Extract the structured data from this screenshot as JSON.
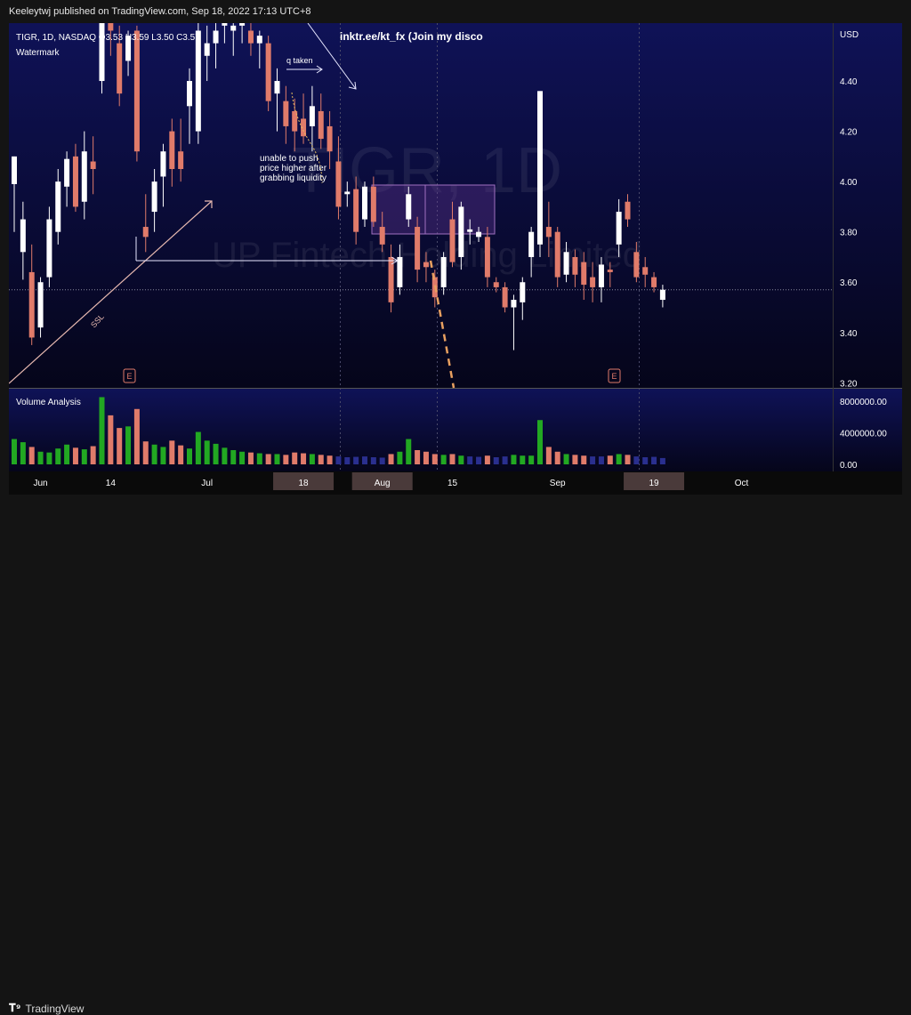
{
  "header": {
    "publisher": "Keeleytwj published on TradingView.com, Sep 18, 2022 17:13 UTC+8"
  },
  "legend": {
    "symbol_line": "TIGR, 1D, NASDAQ  O3.53  H3.59  L3.50  C3.57",
    "indicator": "Watermark"
  },
  "overlay": {
    "link_text": "inktr.ee/kt_fx (Join my disco",
    "watermark_symbol": "TIGR, 1D",
    "watermark_name": "UP Fintech Holding Limited",
    "annotation_liquidity_taken": "q taken",
    "annotation_unable": [
      "unable to push",
      "price higher after",
      "grabbing liquidity"
    ],
    "trendline_label": "SSL",
    "earnings_marker": "E"
  },
  "volume_pane": {
    "title": "Volume Analysis"
  },
  "footer": {
    "brand": "TradingView"
  },
  "colors": {
    "up": "#ffffff",
    "down": "#e07b6a",
    "vol_up": "#22a822",
    "vol_down": "#e07b6a",
    "vol_low": "#2a2f8f",
    "bg_top": "#0f1257",
    "bg_bottom": "#05051a",
    "dashed_orange": "#e8a060"
  },
  "chart_data": {
    "type": "candlestick",
    "price_axis": {
      "unit": "USD",
      "ticks": [
        4.4,
        4.2,
        4.0,
        3.8,
        3.6,
        3.4,
        3.2
      ],
      "tick_labels": [
        "4.40",
        "4.20",
        "4.00",
        "3.80",
        "3.60",
        "3.40",
        "3.20"
      ],
      "range": [
        3.18,
        4.63
      ],
      "last_price_line": 3.57
    },
    "volume_axis": {
      "ticks": [
        8000000,
        4000000,
        0
      ],
      "tick_labels": [
        "8000000.00",
        "4000000.00",
        "0.00"
      ],
      "range": [
        0,
        9000000
      ]
    },
    "x_axis": {
      "labels": [
        {
          "label": "Jun",
          "bar": 3
        },
        {
          "label": "14",
          "bar": 11
        },
        {
          "label": "Jul",
          "bar": 22
        },
        {
          "label": "18",
          "bar": 33,
          "highlight": true
        },
        {
          "label": "Aug",
          "bar": 42,
          "highlight": true
        },
        {
          "label": "15",
          "bar": 50
        },
        {
          "label": "Sep",
          "bar": 62
        },
        {
          "label": "19",
          "bar": 73,
          "highlight": true
        },
        {
          "label": "Oct",
          "bar": 83
        }
      ]
    },
    "candles": [
      {
        "o": 3.99,
        "h": 4.1,
        "l": 3.8,
        "c": 4.1
      },
      {
        "o": 3.72,
        "h": 3.92,
        "l": 3.61,
        "c": 3.85
      },
      {
        "o": 3.64,
        "h": 3.75,
        "l": 3.35,
        "c": 3.38
      },
      {
        "o": 3.42,
        "h": 3.62,
        "l": 3.38,
        "c": 3.6
      },
      {
        "o": 3.62,
        "h": 3.9,
        "l": 3.58,
        "c": 3.85
      },
      {
        "o": 3.8,
        "h": 4.05,
        "l": 3.75,
        "c": 4.0
      },
      {
        "o": 3.98,
        "h": 4.12,
        "l": 3.9,
        "c": 4.09
      },
      {
        "o": 4.1,
        "h": 4.15,
        "l": 3.88,
        "c": 3.9
      },
      {
        "o": 3.92,
        "h": 4.2,
        "l": 3.85,
        "c": 4.12
      },
      {
        "o": 4.08,
        "h": 4.18,
        "l": 3.95,
        "c": 4.05
      },
      {
        "o": 4.4,
        "h": 4.68,
        "l": 4.35,
        "c": 4.63
      },
      {
        "o": 4.63,
        "h": 4.7,
        "l": 4.5,
        "c": 4.6
      },
      {
        "o": 4.55,
        "h": 4.62,
        "l": 4.3,
        "c": 4.35
      },
      {
        "o": 4.48,
        "h": 4.6,
        "l": 4.42,
        "c": 4.58
      },
      {
        "o": 4.6,
        "h": 4.62,
        "l": 4.08,
        "c": 4.12
      },
      {
        "o": 3.82,
        "h": 3.95,
        "l": 3.72,
        "c": 3.78
      },
      {
        "o": 3.88,
        "h": 4.05,
        "l": 3.8,
        "c": 4.0
      },
      {
        "o": 4.02,
        "h": 4.15,
        "l": 3.9,
        "c": 4.12
      },
      {
        "o": 4.2,
        "h": 4.25,
        "l": 3.98,
        "c": 4.05
      },
      {
        "o": 4.12,
        "h": 4.25,
        "l": 4.0,
        "c": 4.05
      },
      {
        "o": 4.3,
        "h": 4.45,
        "l": 4.15,
        "c": 4.4
      },
      {
        "o": 4.2,
        "h": 4.63,
        "l": 4.15,
        "c": 4.6
      },
      {
        "o": 4.5,
        "h": 4.62,
        "l": 4.4,
        "c": 4.55
      },
      {
        "o": 4.55,
        "h": 4.65,
        "l": 4.45,
        "c": 4.6
      },
      {
        "o": 4.62,
        "h": 4.7,
        "l": 4.55,
        "c": 4.63
      },
      {
        "o": 4.6,
        "h": 4.7,
        "l": 4.5,
        "c": 4.62
      },
      {
        "o": 4.62,
        "h": 4.7,
        "l": 4.55,
        "c": 4.63
      },
      {
        "o": 4.6,
        "h": 4.65,
        "l": 4.5,
        "c": 4.55
      },
      {
        "o": 4.55,
        "h": 4.6,
        "l": 4.45,
        "c": 4.58
      },
      {
        "o": 4.55,
        "h": 4.58,
        "l": 4.28,
        "c": 4.32
      },
      {
        "o": 4.35,
        "h": 4.45,
        "l": 4.2,
        "c": 4.4
      },
      {
        "o": 4.32,
        "h": 4.38,
        "l": 4.15,
        "c": 4.22
      },
      {
        "o": 4.28,
        "h": 4.33,
        "l": 4.12,
        "c": 4.2
      },
      {
        "o": 4.25,
        "h": 4.35,
        "l": 4.15,
        "c": 4.18
      },
      {
        "o": 4.22,
        "h": 4.38,
        "l": 4.12,
        "c": 4.3
      },
      {
        "o": 4.28,
        "h": 4.35,
        "l": 4.13,
        "c": 4.17
      },
      {
        "o": 4.22,
        "h": 4.28,
        "l": 4.05,
        "c": 4.12
      },
      {
        "o": 4.08,
        "h": 4.18,
        "l": 3.85,
        "c": 3.9
      },
      {
        "o": 3.95,
        "h": 4.0,
        "l": 3.9,
        "c": 3.96
      },
      {
        "o": 3.97,
        "h": 4.02,
        "l": 3.75,
        "c": 3.8
      },
      {
        "o": 3.85,
        "h": 4.0,
        "l": 3.82,
        "c": 3.98
      },
      {
        "o": 3.98,
        "h": 4.02,
        "l": 3.82,
        "c": 3.84
      },
      {
        "o": 3.82,
        "h": 3.88,
        "l": 3.72,
        "c": 3.75
      },
      {
        "o": 3.7,
        "h": 3.75,
        "l": 3.48,
        "c": 3.52
      },
      {
        "o": 3.58,
        "h": 3.75,
        "l": 3.55,
        "c": 3.7
      },
      {
        "o": 3.85,
        "h": 3.98,
        "l": 3.82,
        "c": 3.95
      },
      {
        "o": 3.82,
        "h": 3.86,
        "l": 3.6,
        "c": 3.65
      },
      {
        "o": 3.68,
        "h": 3.72,
        "l": 3.6,
        "c": 3.66
      },
      {
        "o": 3.62,
        "h": 3.65,
        "l": 3.5,
        "c": 3.54
      },
      {
        "o": 3.58,
        "h": 3.72,
        "l": 3.55,
        "c": 3.7
      },
      {
        "o": 3.85,
        "h": 3.92,
        "l": 3.66,
        "c": 3.68
      },
      {
        "o": 3.7,
        "h": 3.92,
        "l": 3.65,
        "c": 3.9
      },
      {
        "o": 3.8,
        "h": 3.85,
        "l": 3.75,
        "c": 3.81
      },
      {
        "o": 3.78,
        "h": 3.82,
        "l": 3.76,
        "c": 3.8
      },
      {
        "o": 3.78,
        "h": 3.82,
        "l": 3.58,
        "c": 3.62
      },
      {
        "o": 3.6,
        "h": 3.62,
        "l": 3.56,
        "c": 3.58
      },
      {
        "o": 3.58,
        "h": 3.6,
        "l": 3.48,
        "c": 3.5
      },
      {
        "o": 3.5,
        "h": 3.55,
        "l": 3.33,
        "c": 3.53
      },
      {
        "o": 3.52,
        "h": 3.62,
        "l": 3.45,
        "c": 3.6
      },
      {
        "o": 3.7,
        "h": 3.82,
        "l": 3.62,
        "c": 3.8
      },
      {
        "o": 3.75,
        "h": 4.36,
        "l": 3.7,
        "c": 4.36
      },
      {
        "o": 3.82,
        "h": 3.92,
        "l": 3.7,
        "c": 3.78
      },
      {
        "o": 3.8,
        "h": 3.82,
        "l": 3.58,
        "c": 3.62
      },
      {
        "o": 3.63,
        "h": 3.76,
        "l": 3.6,
        "c": 3.72
      },
      {
        "o": 3.7,
        "h": 3.73,
        "l": 3.58,
        "c": 3.63
      },
      {
        "o": 3.68,
        "h": 3.72,
        "l": 3.53,
        "c": 3.59
      },
      {
        "o": 3.62,
        "h": 3.68,
        "l": 3.52,
        "c": 3.58
      },
      {
        "o": 3.58,
        "h": 3.7,
        "l": 3.52,
        "c": 3.67
      },
      {
        "o": 3.65,
        "h": 3.68,
        "l": 3.58,
        "c": 3.64
      },
      {
        "o": 3.75,
        "h": 3.93,
        "l": 3.7,
        "c": 3.88
      },
      {
        "o": 3.92,
        "h": 3.95,
        "l": 3.82,
        "c": 3.85
      },
      {
        "o": 3.72,
        "h": 3.76,
        "l": 3.6,
        "c": 3.62
      },
      {
        "o": 3.66,
        "h": 3.7,
        "l": 3.58,
        "c": 3.63
      },
      {
        "o": 3.62,
        "h": 3.64,
        "l": 3.56,
        "c": 3.58
      },
      {
        "o": 3.53,
        "h": 3.59,
        "l": 3.5,
        "c": 3.57
      }
    ],
    "volumes": [
      3200000,
      2800000,
      2200000,
      1600000,
      1500000,
      2000000,
      2500000,
      2100000,
      1900000,
      2300000,
      8500000,
      6200000,
      4600000,
      4800000,
      7000000,
      2900000,
      2500000,
      2200000,
      3000000,
      2400000,
      2000000,
      4100000,
      3000000,
      2600000,
      2100000,
      1800000,
      1600000,
      1500000,
      1400000,
      1300000,
      1300000,
      1200000,
      1500000,
      1400000,
      1300000,
      1200000,
      1100000,
      1000000,
      900000,
      950000,
      1000000,
      900000,
      850000,
      1300000,
      1600000,
      3200000,
      1800000,
      1600000,
      1300000,
      1200000,
      1300000,
      1100000,
      1000000,
      950000,
      1100000,
      900000,
      1000000,
      1200000,
      1100000,
      1100000,
      5600000,
      2200000,
      1600000,
      1300000,
      1200000,
      1100000,
      1000000,
      1000000,
      1100000,
      1300000,
      1200000,
      1000000,
      900000,
      950000,
      800000
    ]
  }
}
